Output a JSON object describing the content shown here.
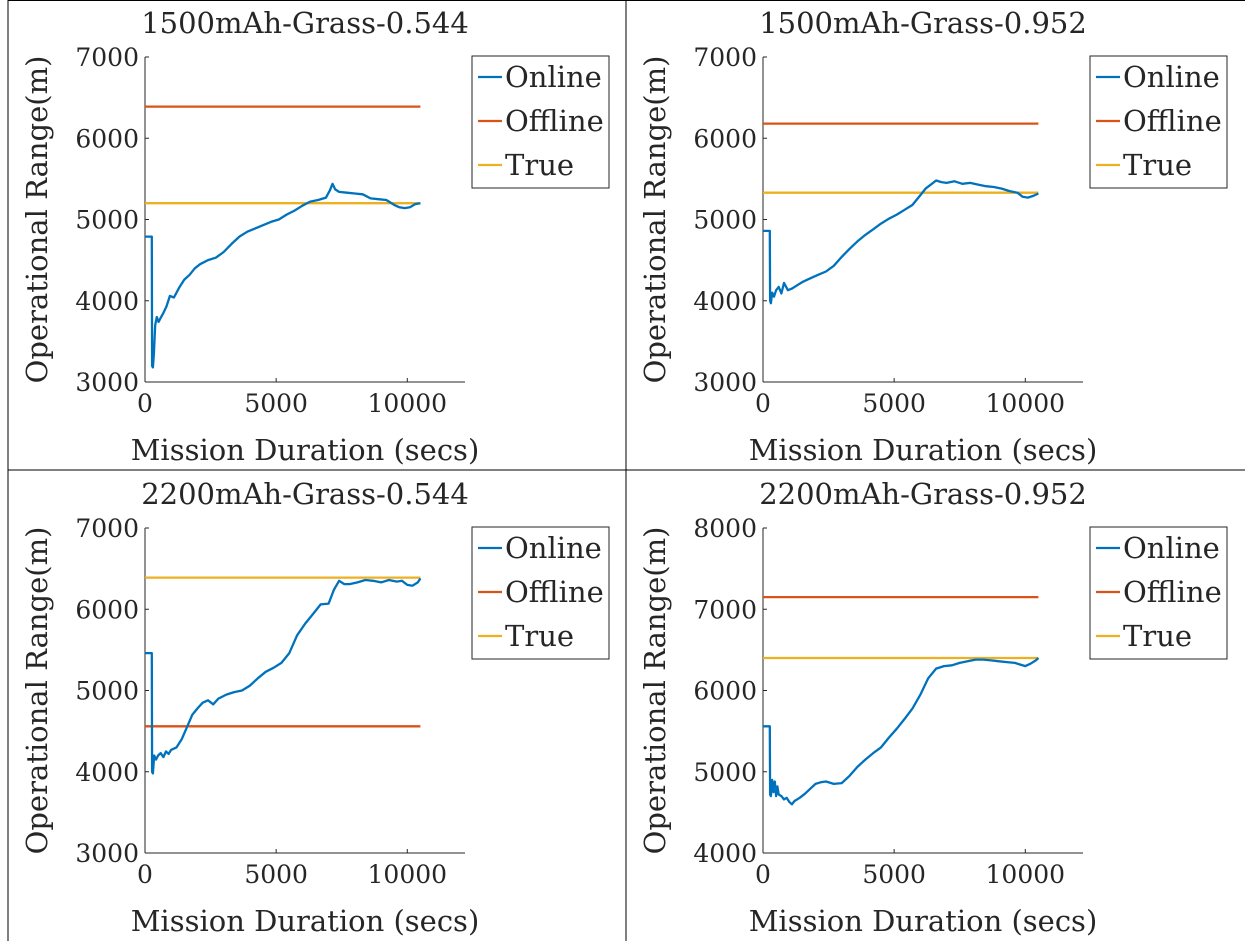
{
  "colors": {
    "online": "#0072BD",
    "offline": "#D95319",
    "true": "#EDB120",
    "axis": "#262626",
    "border": "#000000"
  },
  "legend_labels": [
    "Online",
    "Offline",
    "True"
  ],
  "chart_data": [
    {
      "type": "line",
      "title": "1500mAh-Grass-0.544",
      "xlabel": "Mission Duration (secs)",
      "ylabel": "Operational Range(m)",
      "xlim": [
        0,
        12200
      ],
      "ylim": [
        3000,
        7000
      ],
      "xticks": [
        "0",
        "5000",
        "10000"
      ],
      "yticks": [
        "3000",
        "4000",
        "5000",
        "6000",
        "7000"
      ],
      "grid": false,
      "legend_position": "top-right",
      "series": [
        {
          "name": "Online",
          "x": [
            0,
            260,
            270,
            300,
            340,
            390,
            450,
            520,
            600,
            700,
            820,
            950,
            1100,
            1300,
            1500,
            1700,
            1900,
            2100,
            2400,
            2700,
            3000,
            3300,
            3600,
            3900,
            4200,
            4500,
            4800,
            5100,
            5400,
            5700,
            6000,
            6300,
            6600,
            6900,
            7050,
            7150,
            7250,
            7400,
            7700,
            8000,
            8300,
            8600,
            8900,
            9200,
            9500,
            9700,
            9900,
            10100,
            10300,
            10500
          ],
          "y": [
            4790,
            4790,
            3200,
            3180,
            3350,
            3700,
            3800,
            3740,
            3790,
            3850,
            3930,
            4060,
            4040,
            4160,
            4260,
            4320,
            4400,
            4450,
            4500,
            4530,
            4600,
            4700,
            4790,
            4850,
            4890,
            4930,
            4970,
            5000,
            5060,
            5110,
            5170,
            5220,
            5240,
            5270,
            5360,
            5440,
            5370,
            5340,
            5330,
            5320,
            5310,
            5260,
            5250,
            5240,
            5180,
            5150,
            5140,
            5150,
            5190,
            5200
          ]
        },
        {
          "name": "Offline",
          "x": [
            0,
            10500
          ],
          "y": [
            6390,
            6390
          ]
        },
        {
          "name": "True",
          "x": [
            0,
            10500
          ],
          "y": [
            5200,
            5200
          ]
        }
      ]
    },
    {
      "type": "line",
      "title": "1500mAh-Grass-0.952",
      "xlabel": "Mission Duration (secs)",
      "ylabel": "Operational Range(m)",
      "xlim": [
        0,
        12200
      ],
      "ylim": [
        3000,
        7000
      ],
      "xticks": [
        "0",
        "5000",
        "10000"
      ],
      "yticks": [
        "3000",
        "4000",
        "5000",
        "6000",
        "7000"
      ],
      "grid": false,
      "legend_position": "top-right",
      "series": [
        {
          "name": "Online",
          "x": [
            0,
            260,
            270,
            300,
            350,
            420,
            500,
            600,
            700,
            800,
            950,
            1100,
            1300,
            1500,
            1700,
            1900,
            2100,
            2400,
            2700,
            3000,
            3300,
            3600,
            3900,
            4200,
            4500,
            4800,
            5100,
            5400,
            5700,
            6000,
            6200,
            6400,
            6600,
            6800,
            7000,
            7300,
            7600,
            7900,
            8200,
            8500,
            8800,
            9100,
            9400,
            9700,
            9900,
            10100,
            10300,
            10500
          ],
          "y": [
            4860,
            4860,
            4000,
            3970,
            4100,
            4050,
            4130,
            4170,
            4090,
            4220,
            4130,
            4150,
            4190,
            4230,
            4260,
            4290,
            4320,
            4360,
            4430,
            4540,
            4640,
            4730,
            4810,
            4880,
            4950,
            5010,
            5060,
            5120,
            5180,
            5300,
            5380,
            5430,
            5480,
            5460,
            5450,
            5470,
            5440,
            5450,
            5430,
            5410,
            5400,
            5380,
            5350,
            5330,
            5280,
            5270,
            5290,
            5320
          ]
        },
        {
          "name": "Offline",
          "x": [
            0,
            10500
          ],
          "y": [
            6180,
            6180
          ]
        },
        {
          "name": "True",
          "x": [
            0,
            10500
          ],
          "y": [
            5330,
            5330
          ]
        }
      ]
    },
    {
      "type": "line",
      "title": "2200mAh-Grass-0.544",
      "xlabel": "Mission Duration (secs)",
      "ylabel": "Operational Range(m)",
      "xlim": [
        0,
        12200
      ],
      "ylim": [
        3000,
        7000
      ],
      "xticks": [
        "0",
        "5000",
        "10000"
      ],
      "yticks": [
        "3000",
        "4000",
        "5000",
        "6000",
        "7000"
      ],
      "grid": false,
      "legend_position": "top-right",
      "series": [
        {
          "name": "Online",
          "x": [
            0,
            260,
            270,
            300,
            350,
            420,
            500,
            600,
            700,
            800,
            900,
            1000,
            1200,
            1400,
            1600,
            1800,
            2000,
            2200,
            2400,
            2600,
            2800,
            3100,
            3400,
            3700,
            4000,
            4300,
            4600,
            4900,
            5200,
            5500,
            5800,
            6100,
            6400,
            6700,
            7000,
            7200,
            7400,
            7600,
            7800,
            8100,
            8400,
            8700,
            9000,
            9300,
            9600,
            9800,
            10000,
            10200,
            10400,
            10500
          ],
          "y": [
            5460,
            5460,
            4000,
            3980,
            4200,
            4150,
            4200,
            4230,
            4180,
            4250,
            4220,
            4270,
            4300,
            4400,
            4550,
            4700,
            4780,
            4850,
            4880,
            4830,
            4900,
            4950,
            4980,
            5000,
            5060,
            5150,
            5230,
            5280,
            5340,
            5460,
            5680,
            5820,
            5940,
            6060,
            6070,
            6240,
            6350,
            6310,
            6310,
            6330,
            6360,
            6350,
            6330,
            6360,
            6340,
            6350,
            6300,
            6290,
            6330,
            6380
          ]
        },
        {
          "name": "Offline",
          "x": [
            0,
            10500
          ],
          "y": [
            4560,
            4560
          ]
        },
        {
          "name": "True",
          "x": [
            0,
            10500
          ],
          "y": [
            6390,
            6390
          ]
        }
      ]
    },
    {
      "type": "line",
      "title": "2200mAh-Grass-0.952",
      "xlabel": "Mission Duration (secs)",
      "ylabel": "Operational Range(m)",
      "xlim": [
        0,
        12200
      ],
      "ylim": [
        4000,
        8000
      ],
      "xticks": [
        "0",
        "5000",
        "10000"
      ],
      "yticks": [
        "4000",
        "5000",
        "6000",
        "7000",
        "8000"
      ],
      "grid": false,
      "legend_position": "top-right",
      "series": [
        {
          "name": "Online",
          "x": [
            0,
            260,
            270,
            300,
            350,
            400,
            450,
            500,
            550,
            600,
            700,
            800,
            900,
            1000,
            1100,
            1200,
            1400,
            1600,
            1800,
            2000,
            2200,
            2400,
            2700,
            3000,
            3300,
            3600,
            3900,
            4200,
            4500,
            4800,
            5100,
            5400,
            5700,
            6000,
            6300,
            6600,
            6900,
            7200,
            7500,
            7800,
            8100,
            8400,
            8700,
            9000,
            9300,
            9600,
            9800,
            10000,
            10200,
            10400,
            10500
          ],
          "y": [
            5560,
            5560,
            4720,
            4700,
            4900,
            4750,
            4880,
            4700,
            4820,
            4720,
            4700,
            4660,
            4680,
            4630,
            4600,
            4640,
            4680,
            4730,
            4790,
            4850,
            4870,
            4880,
            4850,
            4860,
            4950,
            5060,
            5150,
            5230,
            5300,
            5420,
            5530,
            5650,
            5780,
            5950,
            6150,
            6270,
            6300,
            6310,
            6340,
            6360,
            6380,
            6380,
            6370,
            6360,
            6350,
            6340,
            6320,
            6300,
            6330,
            6370,
            6400
          ]
        },
        {
          "name": "Offline",
          "x": [
            0,
            10500
          ],
          "y": [
            7150,
            7150
          ]
        },
        {
          "name": "True",
          "x": [
            0,
            10500
          ],
          "y": [
            6400,
            6400
          ]
        }
      ]
    }
  ]
}
